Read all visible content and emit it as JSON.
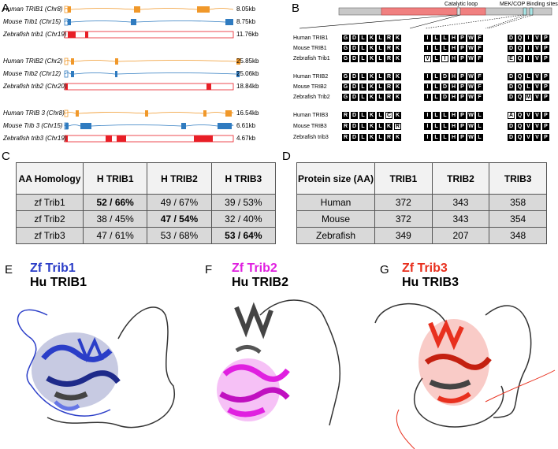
{
  "panels": {
    "A": "A",
    "B": "B",
    "C": "C",
    "D": "D",
    "E": "E",
    "F": "F",
    "G": "G"
  },
  "genes": [
    {
      "label": "Human TRIB1 (Chr8)",
      "size": "8.05kb",
      "color": "#f0982a"
    },
    {
      "label": "Mouse Trib1 (Chr15)",
      "size": "8.75kb",
      "color": "#2f7bc0"
    },
    {
      "label": "Zebrafish trib1 (Chr19)",
      "size": "11.76kb",
      "color": "#e81e26"
    },
    {
      "label": "Human TRIB2 (Chr2)",
      "size": "25.85kb",
      "color": "#f0982a"
    },
    {
      "label": "Mouse Trib2 (Chr12)",
      "size": "25.06kb",
      "color": "#2f7bc0"
    },
    {
      "label": "Zebrafish trib2 (Chr20)",
      "size": "18.84kb",
      "color": "#e81e26"
    },
    {
      "label": "Human TRIB 3 (Chr8)",
      "size": "16.54kb",
      "color": "#f0982a"
    },
    {
      "label": "Mouse Trib 3 (Chr15)",
      "size": "6.61kb",
      "color": "#2f7bc0"
    },
    {
      "label": "Zebrafish trib3 (Chr19)",
      "size": "4.67kb",
      "color": "#e81e26"
    }
  ],
  "domain_labels": {
    "catalytic": "Catalytic loop",
    "mek": "MEK/COP Binding sites"
  },
  "alignment": [
    {
      "label": "Human TRIB1",
      "s1": "GDLKLRK",
      "s2": "ILLHPWF",
      "s3": "DQIVP",
      "w1": "",
      "w2": "",
      "w3": ""
    },
    {
      "label": "Mouse TRIB1",
      "s1": "GDLKLRK",
      "s2": "ILLHPWF",
      "s3": "DQIVP",
      "w1": "",
      "w2": "",
      "w3": ""
    },
    {
      "label": "Zebrafish Trib1",
      "s1": "GDLKLRK",
      "s2": "VLIHPWF",
      "s3": "EQIVP",
      "w1": "",
      "w2": "02",
      "w3": "0"
    },
    {
      "label": "Human TRIB2",
      "s1": "GDLKLRK",
      "s2": "ILDHPWF",
      "s3": "DQLVP",
      "w1": "",
      "w2": "",
      "w3": ""
    },
    {
      "label": "Mouse TRIB2",
      "s1": "GDLKLRK",
      "s2": "ILDHPWF",
      "s3": "DQLVP",
      "w1": "",
      "w2": "",
      "w3": ""
    },
    {
      "label": "Zebrafish Trib2",
      "s1": "GDLKLRK",
      "s2": "ILDHPWF",
      "s3": "DQMVP",
      "w1": "",
      "w2": "",
      "w3": "2"
    },
    {
      "label": "Human TRIB3",
      "s1": "RDLKLCK",
      "s2": "ILLHPWL",
      "s3": "AQVVP",
      "w1": "5",
      "w2": "",
      "w3": "0"
    },
    {
      "label": "Mouse TRIB3",
      "s1": "RDLKLKR",
      "s2": "ILLHPWL",
      "s3": "DQVVP",
      "w1": "6",
      "w2": "",
      "w3": ""
    },
    {
      "label": "Zebrafish trib3",
      "s1": "RDLKLRK",
      "s2": "ILLHPWL",
      "s3": "DQVVP",
      "w1": "",
      "w2": "",
      "w3": ""
    }
  ],
  "table_c": {
    "header": [
      "AA Homology",
      "H TRIB1",
      "H TRIB2",
      "H TRIB3"
    ],
    "rows": [
      {
        "label": "zf Trib1",
        "cells": [
          "52 / 66%",
          "49 / 67%",
          "39 / 53%"
        ]
      },
      {
        "label": "zf Trib2",
        "cells": [
          "38 / 45%",
          "47 / 54%",
          "32 / 40%"
        ]
      },
      {
        "label": "zf Trib3",
        "cells": [
          "47 / 61%",
          "53 / 68%",
          "53 / 64%"
        ]
      }
    ]
  },
  "table_d": {
    "header": [
      "Protein size (AA)",
      "TRIB1",
      "TRIB2",
      "TRIB3"
    ],
    "rows": [
      {
        "label": "Human",
        "cells": [
          "372",
          "343",
          "358"
        ]
      },
      {
        "label": "Mouse",
        "cells": [
          "372",
          "343",
          "354"
        ]
      },
      {
        "label": "Zebrafish",
        "cells": [
          "349",
          "207",
          "348"
        ]
      }
    ]
  },
  "structures": {
    "E": {
      "zf": "Zf Trib1",
      "hu": "Hu TRIB1",
      "color": "#2b3ec8"
    },
    "F": {
      "zf": "Zf Trib2",
      "hu": "Hu TRIB2",
      "color": "#e020e0"
    },
    "G": {
      "zf": "Zf Trib3",
      "hu": "Hu TRIB3",
      "color": "#e8301e"
    }
  }
}
